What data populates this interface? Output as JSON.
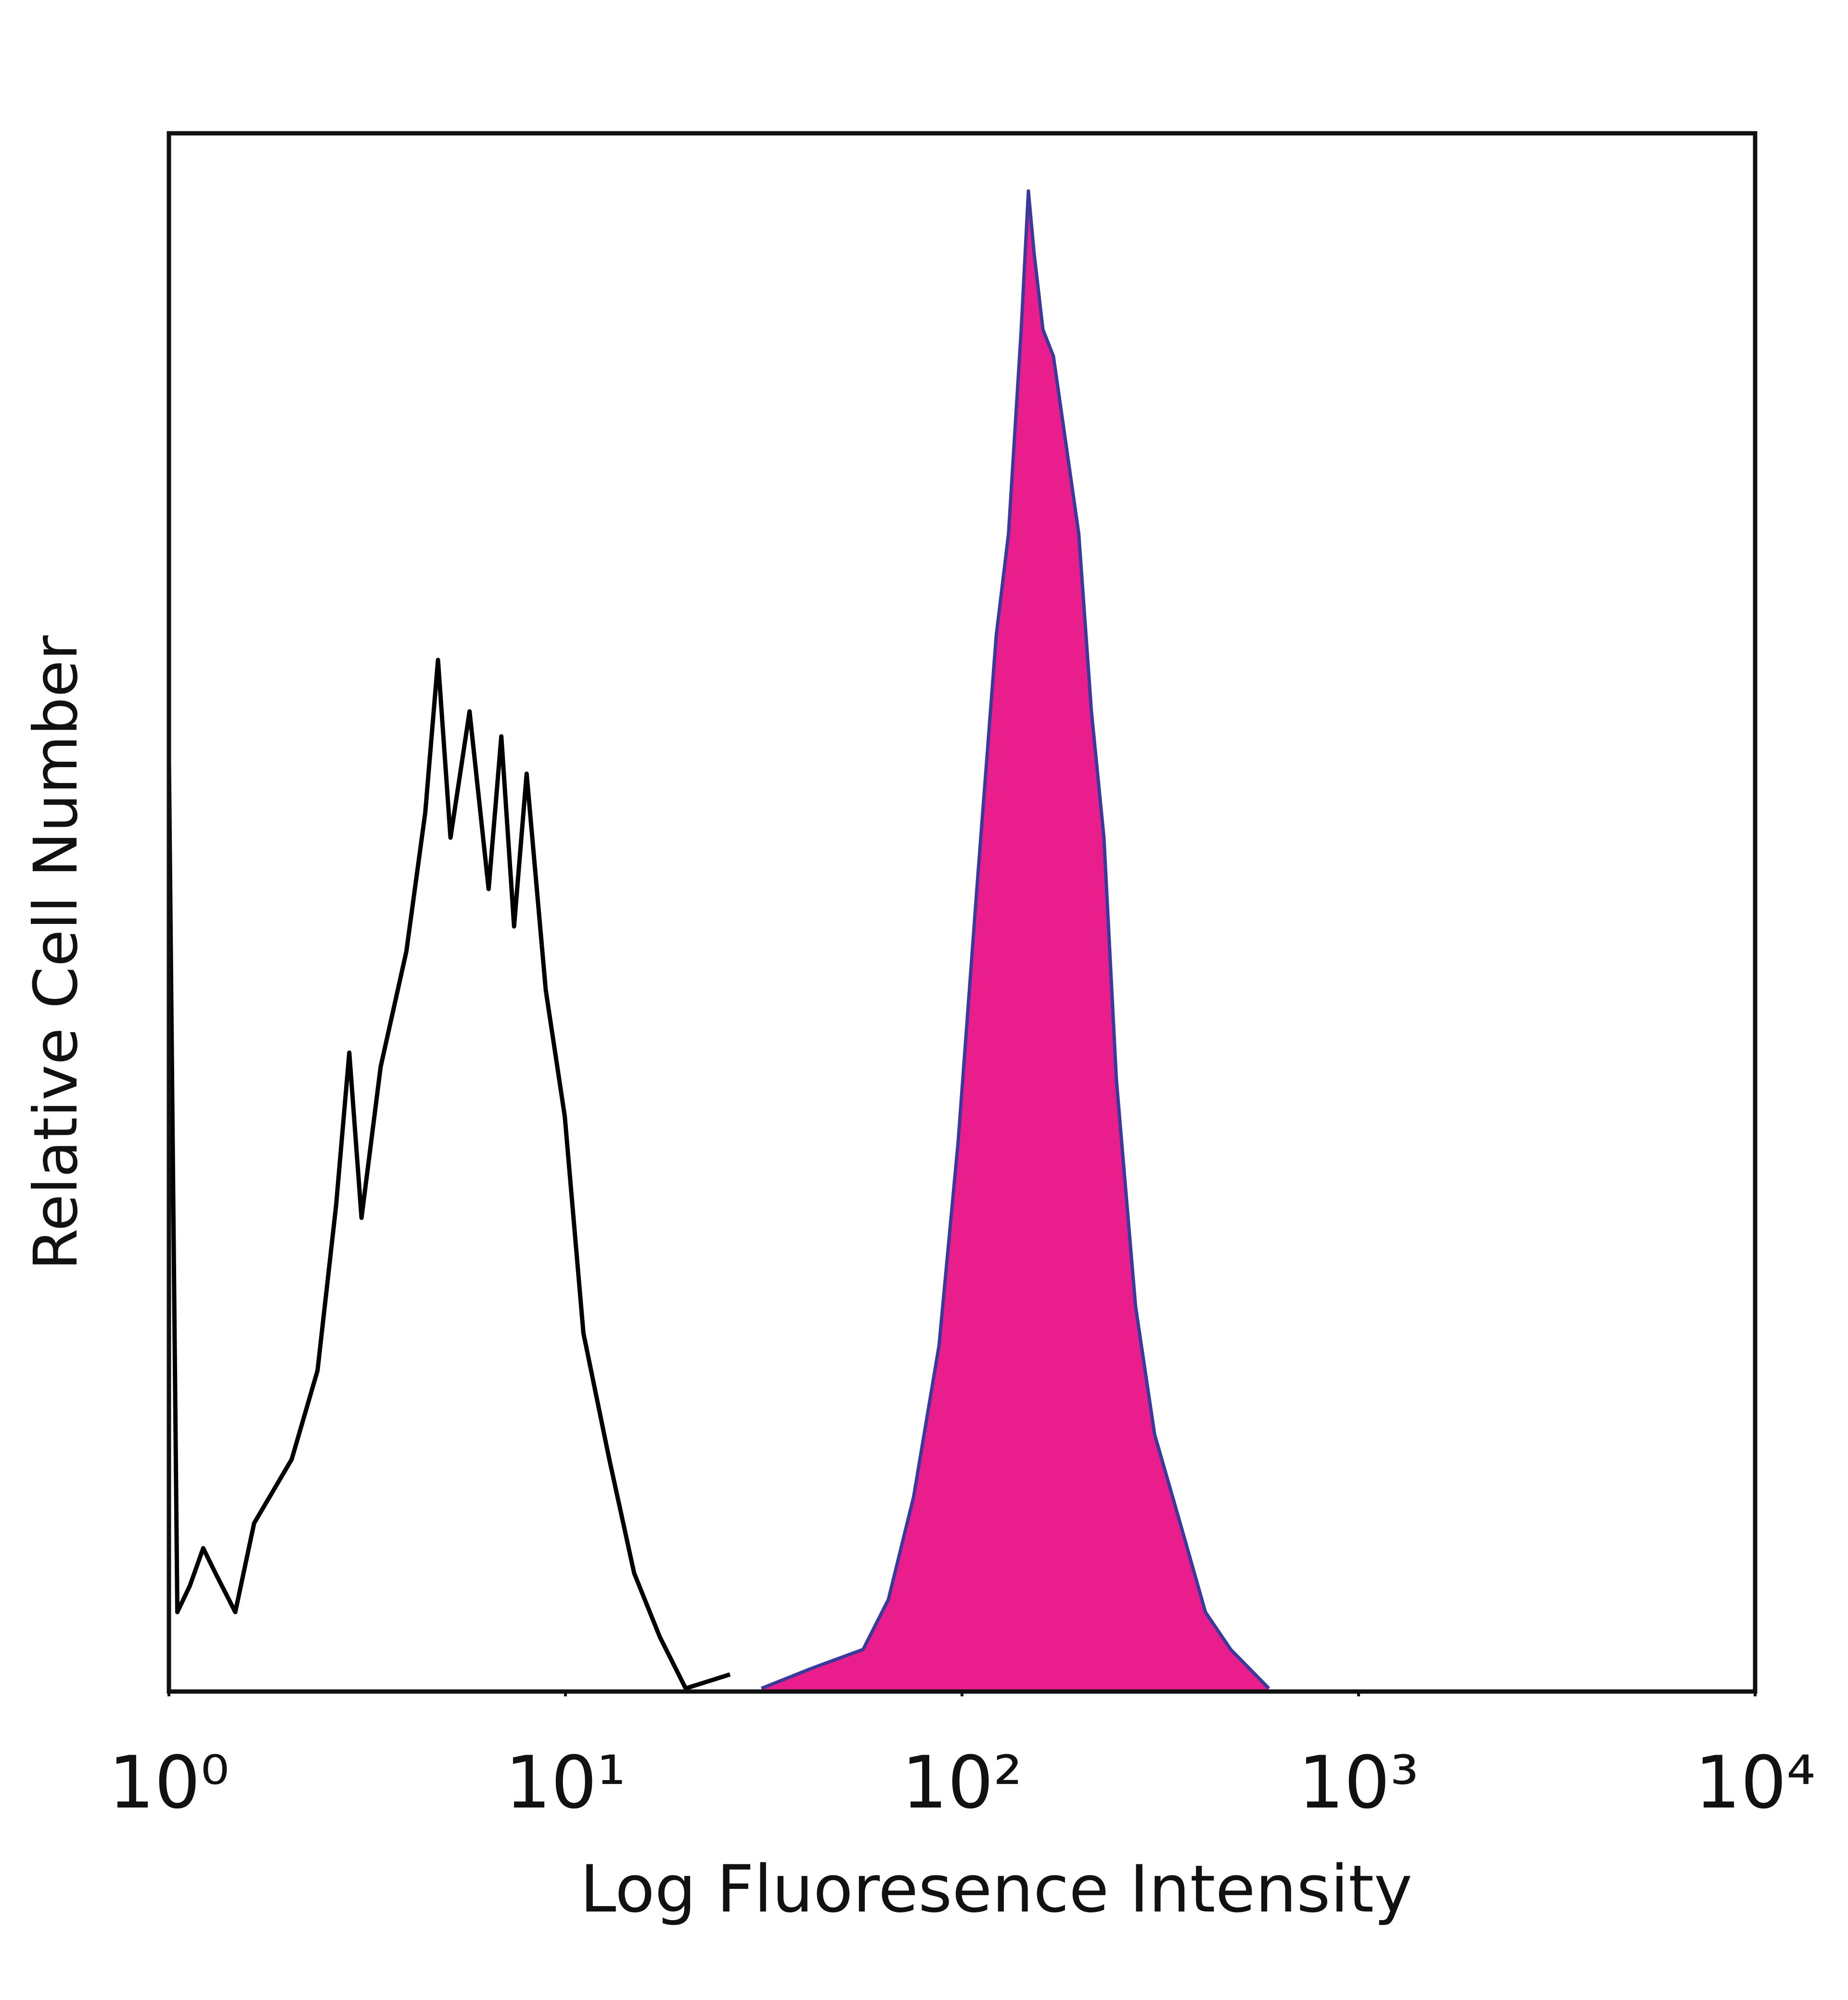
{
  "chart_data": {
    "type": "line",
    "xlabel": "Log Fluoresence Intensity",
    "ylabel": "Relative Cell Number",
    "xscale": "log",
    "xlim": [
      1,
      10000
    ],
    "xticks": [
      {
        "value": 1,
        "label": "10⁰"
      },
      {
        "value": 10,
        "label": "10¹"
      },
      {
        "value": 100,
        "label": "10²"
      },
      {
        "value": 1000,
        "label": "10³"
      },
      {
        "value": 10000,
        "label": "10⁴"
      }
    ],
    "ylim": [
      0,
      100
    ],
    "series": [
      {
        "color": "#000000",
        "x": [
          1,
          1,
          1.05,
          1.13,
          1.22,
          1.31,
          1.47,
          1.64,
          2.04,
          2.37,
          2.64,
          2.85,
          3.06,
          3.42,
          3.97,
          4.43,
          4.77,
          5.13,
          5.73,
          6.4,
          6.89,
          7.42,
          7.98,
          8.92,
          9.96,
          11.1,
          12.9,
          14.9,
          17.3,
          20.1,
          26.0
        ],
        "values": [
          0,
          59.7,
          5.1,
          6.8,
          9.2,
          7.6,
          5.1,
          10.8,
          14.9,
          20.6,
          31.2,
          41.0,
          30.4,
          40.1,
          47.5,
          56.4,
          66.2,
          54.8,
          62.9,
          51.5,
          61.3,
          49.1,
          58.9,
          45.0,
          36.9,
          23.0,
          14.9,
          7.6,
          3.5,
          0.2,
          1.1
        ]
      },
      {
        "color": "#3a3a9c",
        "fill": "#e91e8c",
        "x": [
          31.2,
          41.9,
          56.3,
          65.2,
          75.5,
          87.5,
          97.8,
          109,
          122,
          131,
          141,
          147,
          152,
          160,
          170,
          183,
          197,
          212,
          228,
          245,
          274,
          306,
          355,
          411,
          476,
          594
        ],
        "values": [
          0.2,
          1.5,
          2.7,
          5.9,
          12.5,
          22.2,
          35.3,
          51.5,
          67.8,
          74.3,
          87.4,
          96.3,
          92.3,
          87.4,
          85.7,
          80.0,
          74.3,
          62.9,
          54.8,
          39.3,
          24.7,
          16.5,
          10.8,
          5.1,
          2.7,
          0.2
        ]
      }
    ]
  }
}
